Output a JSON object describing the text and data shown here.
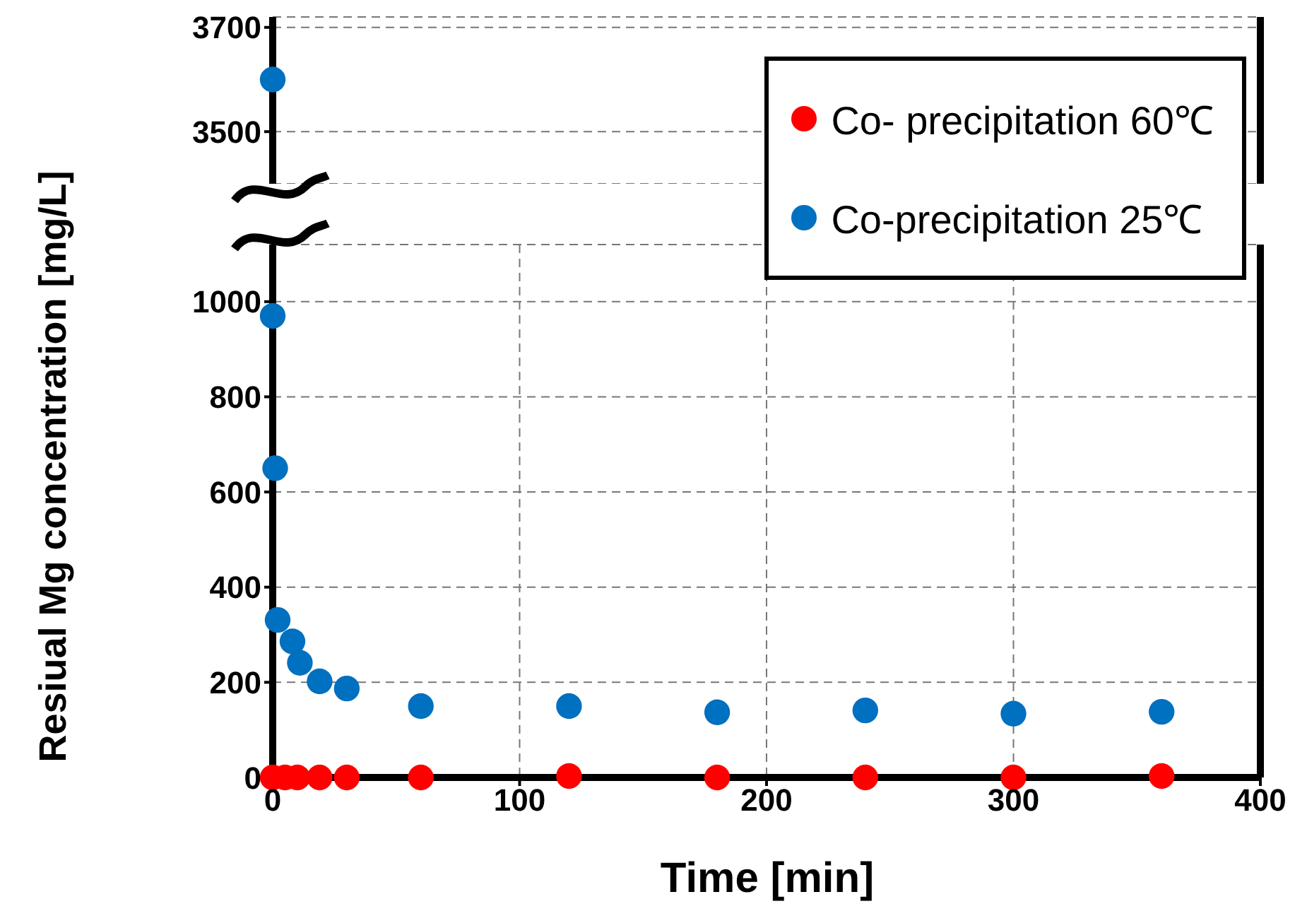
{
  "chart_data": [
    {
      "type": "scatter",
      "xlim": [
        0,
        400
      ],
      "xticks": [
        0,
        100,
        200,
        300,
        400
      ],
      "ylim": [
        3400,
        3720
      ],
      "yticks": [
        3500,
        3700
      ],
      "tick_labels": "y",
      "grid": true,
      "marker": "circle",
      "series": [
        {
          "color": "#0070c0",
          "x": [
            0
          ],
          "values": [
            3600
          ]
        }
      ]
    },
    {
      "type": "scatter",
      "xlabel": "Time [min]",
      "ylabel": "Resiual Mg concentration [mg/L]",
      "xlim": [
        0,
        400
      ],
      "xticks": [
        0,
        100,
        200,
        300,
        400
      ],
      "ylim": [
        0,
        1120
      ],
      "yticks": [
        0,
        200,
        400,
        600,
        800,
        1000
      ],
      "grid": true,
      "legend": "top right",
      "marker": "circle",
      "series": [
        {
          "name": "Co- precipitation 60℃",
          "color": "#ff0000",
          "x": [
            0,
            5,
            10,
            19,
            30,
            60,
            120,
            180,
            240,
            300,
            360
          ],
          "values": [
            0,
            0,
            0,
            0,
            0,
            0,
            3,
            0,
            0,
            0,
            3
          ]
        },
        {
          "name": "Co-precipitation 25℃",
          "color": "#0070c0",
          "x": [
            0,
            1,
            2,
            8,
            11,
            19,
            30,
            60,
            120,
            180,
            240,
            300,
            360
          ],
          "values": [
            970,
            650,
            331,
            286,
            241,
            202,
            187,
            150,
            150,
            137,
            141,
            134,
            138
          ]
        }
      ]
    }
  ]
}
